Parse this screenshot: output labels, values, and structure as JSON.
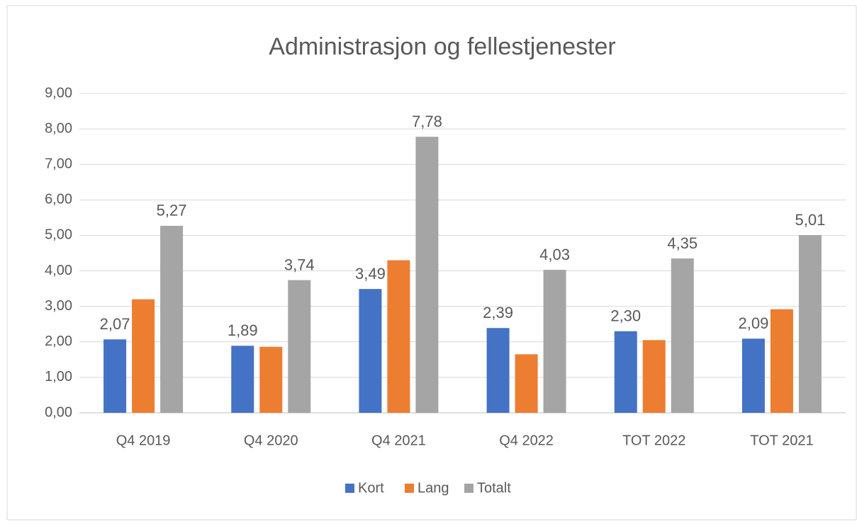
{
  "chart_data": {
    "type": "bar",
    "title": "Administrasjon og fellestjenester",
    "categories": [
      "Q4 2019",
      "Q4 2020",
      "Q4 2021",
      "Q4 2022",
      "TOT 2022",
      "TOT 2021"
    ],
    "series": [
      {
        "name": "Kort",
        "color": "#4472c4",
        "values": [
          2.07,
          1.89,
          3.49,
          2.39,
          2.3,
          2.09
        ],
        "value_labels": [
          "2,07",
          "1,89",
          "3,49",
          "2,39",
          "2,30",
          "2,09"
        ]
      },
      {
        "name": "Lang",
        "color": "#ed7d31",
        "values": [
          3.2,
          1.86,
          4.3,
          1.65,
          2.05,
          2.92
        ]
      },
      {
        "name": "Totalt",
        "color": "#a5a5a5",
        "values": [
          5.27,
          3.74,
          7.78,
          4.03,
          4.35,
          5.01
        ],
        "value_labels": [
          "5,27",
          "3,74",
          "7,78",
          "4,03",
          "4,35",
          "5,01"
        ]
      }
    ],
    "ylim": [
      0,
      9
    ],
    "yticks": [
      {
        "value": 0,
        "label": "0,00"
      },
      {
        "value": 1,
        "label": "1,00"
      },
      {
        "value": 2,
        "label": "2,00"
      },
      {
        "value": 3,
        "label": "3,00"
      },
      {
        "value": 4,
        "label": "4,00"
      },
      {
        "value": 5,
        "label": "5,00"
      },
      {
        "value": 6,
        "label": "6,00"
      },
      {
        "value": 7,
        "label": "7,00"
      },
      {
        "value": 8,
        "label": "8,00"
      },
      {
        "value": 9,
        "label": "9,00"
      }
    ],
    "grid": true,
    "legend": "bottom"
  }
}
